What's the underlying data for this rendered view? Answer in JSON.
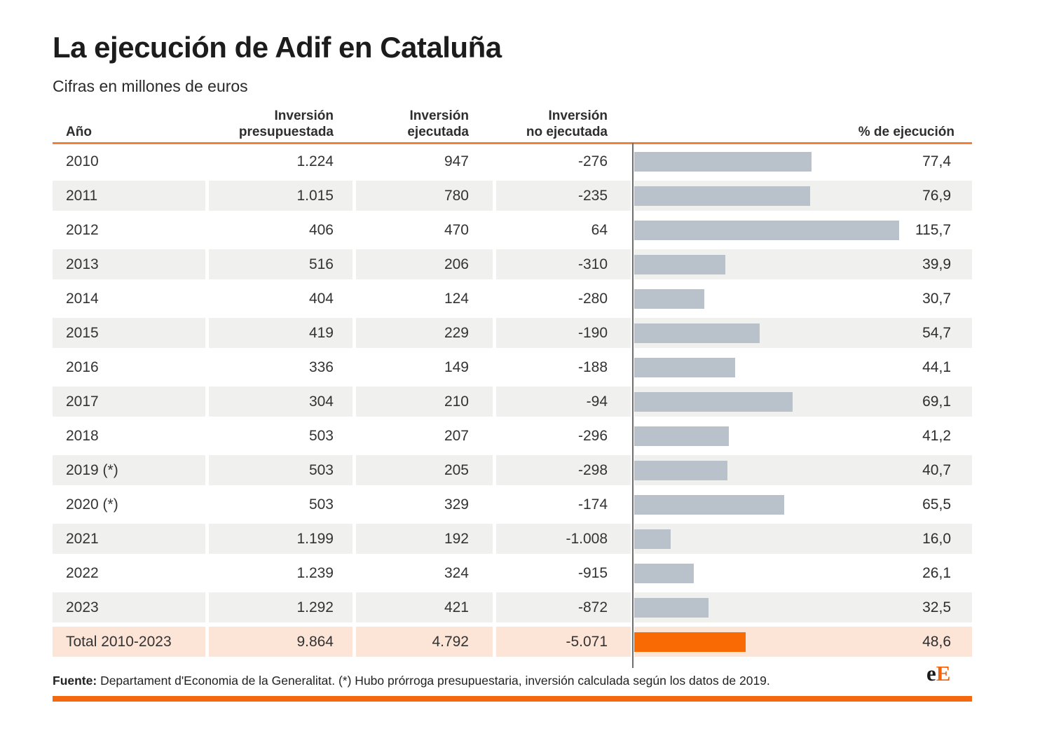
{
  "title": "La ejecución de Adif en Cataluña",
  "subtitle": "Cifras en millones de euros",
  "columns": {
    "year": "Año",
    "budgeted_l1": "Inversión",
    "budgeted_l2": "presupuestada",
    "executed_l1": "Inversión",
    "executed_l2": "ejecutada",
    "not_executed_l1": "Inversión",
    "not_executed_l2": "no ejecutada",
    "pct": "% de ejecución"
  },
  "rows": [
    {
      "year": "2010",
      "budgeted": "1.224",
      "executed": "947",
      "not_executed": "-276",
      "pct": "77,4",
      "pct_value": 77.4,
      "is_total": false,
      "zebra": false
    },
    {
      "year": "2011",
      "budgeted": "1.015",
      "executed": "780",
      "not_executed": "-235",
      "pct": "76,9",
      "pct_value": 76.9,
      "is_total": false,
      "zebra": true
    },
    {
      "year": "2012",
      "budgeted": "406",
      "executed": "470",
      "not_executed": "64",
      "pct": "115,7",
      "pct_value": 115.7,
      "is_total": false,
      "zebra": false
    },
    {
      "year": "2013",
      "budgeted": "516",
      "executed": "206",
      "not_executed": "-310",
      "pct": "39,9",
      "pct_value": 39.9,
      "is_total": false,
      "zebra": true
    },
    {
      "year": "2014",
      "budgeted": "404",
      "executed": "124",
      "not_executed": "-280",
      "pct": "30,7",
      "pct_value": 30.7,
      "is_total": false,
      "zebra": false
    },
    {
      "year": "2015",
      "budgeted": "419",
      "executed": "229",
      "not_executed": "-190",
      "pct": "54,7",
      "pct_value": 54.7,
      "is_total": false,
      "zebra": true
    },
    {
      "year": "2016",
      "budgeted": "336",
      "executed": "149",
      "not_executed": "-188",
      "pct": "44,1",
      "pct_value": 44.1,
      "is_total": false,
      "zebra": false
    },
    {
      "year": "2017",
      "budgeted": "304",
      "executed": "210",
      "not_executed": "-94",
      "pct": "69,1",
      "pct_value": 69.1,
      "is_total": false,
      "zebra": true
    },
    {
      "year": "2018",
      "budgeted": "503",
      "executed": "207",
      "not_executed": "-296",
      "pct": "41,2",
      "pct_value": 41.2,
      "is_total": false,
      "zebra": false
    },
    {
      "year": "2019 (*)",
      "budgeted": "503",
      "executed": "205",
      "not_executed": "-298",
      "pct": "40,7",
      "pct_value": 40.7,
      "is_total": false,
      "zebra": true
    },
    {
      "year": "2020 (*)",
      "budgeted": "503",
      "executed": "329",
      "not_executed": "-174",
      "pct": "65,5",
      "pct_value": 65.5,
      "is_total": false,
      "zebra": false
    },
    {
      "year": "2021",
      "budgeted": "1.199",
      "executed": "192",
      "not_executed": "-1.008",
      "pct": "16,0",
      "pct_value": 16.0,
      "is_total": false,
      "zebra": true
    },
    {
      "year": "2022",
      "budgeted": "1.239",
      "executed": "324",
      "not_executed": "-915",
      "pct": "26,1",
      "pct_value": 26.1,
      "is_total": false,
      "zebra": false
    },
    {
      "year": "2023",
      "budgeted": "1.292",
      "executed": "421",
      "not_executed": "-872",
      "pct": "32,5",
      "pct_value": 32.5,
      "is_total": false,
      "zebra": true
    },
    {
      "year": "Total 2010-2023",
      "budgeted": "9.864",
      "executed": "4.792",
      "not_executed": "-5.071",
      "pct": "48,6",
      "pct_value": 48.6,
      "is_total": true,
      "zebra": false
    }
  ],
  "chart_data": {
    "type": "bar",
    "orientation": "horizontal",
    "title": "La ejecución de Adif en Cataluña",
    "subtitle": "Cifras en millones de euros",
    "unit": "millones de euros",
    "categories": [
      "2010",
      "2011",
      "2012",
      "2013",
      "2014",
      "2015",
      "2016",
      "2017",
      "2018",
      "2019 (*)",
      "2020 (*)",
      "2021",
      "2022",
      "2023",
      "Total 2010-2023"
    ],
    "series": [
      {
        "name": "Inversión presupuestada",
        "values": [
          1224,
          1015,
          406,
          516,
          404,
          419,
          336,
          304,
          503,
          503,
          503,
          1199,
          1239,
          1292,
          9864
        ]
      },
      {
        "name": "Inversión ejecutada",
        "values": [
          947,
          780,
          470,
          206,
          124,
          229,
          149,
          210,
          207,
          205,
          329,
          192,
          324,
          421,
          4792
        ]
      },
      {
        "name": "Inversión no ejecutada",
        "values": [
          -276,
          -235,
          64,
          -310,
          -280,
          -190,
          -188,
          -94,
          -296,
          -298,
          -174,
          -1008,
          -915,
          -872,
          -5071
        ]
      },
      {
        "name": "% de ejecución",
        "values": [
          77.4,
          76.9,
          115.7,
          39.9,
          30.7,
          54.7,
          44.1,
          69.1,
          41.2,
          40.7,
          65.5,
          16.0,
          26.1,
          32.5,
          48.6
        ]
      }
    ],
    "bar_series": "% de ejecución",
    "xlim": [
      0,
      120
    ],
    "grid": false,
    "legend": false
  },
  "footer": {
    "source_label": "Fuente:",
    "source_text": " Departament d'Economia de la Generalitat. (*) Hubo prórroga presupuestaria, inversión calculada según los datos de 2019.",
    "logo_e": "e",
    "logo_E": "E"
  },
  "colors": {
    "accent_orange": "#f4690e",
    "rule_orange": "#ef8138",
    "bar_orange": "#f96a05",
    "bar_gray": "#b9c1cb",
    "zebra_gray": "#f0f0ee",
    "total_pink": "#fce4d7",
    "baseline_gray": "#6e6e6e"
  }
}
